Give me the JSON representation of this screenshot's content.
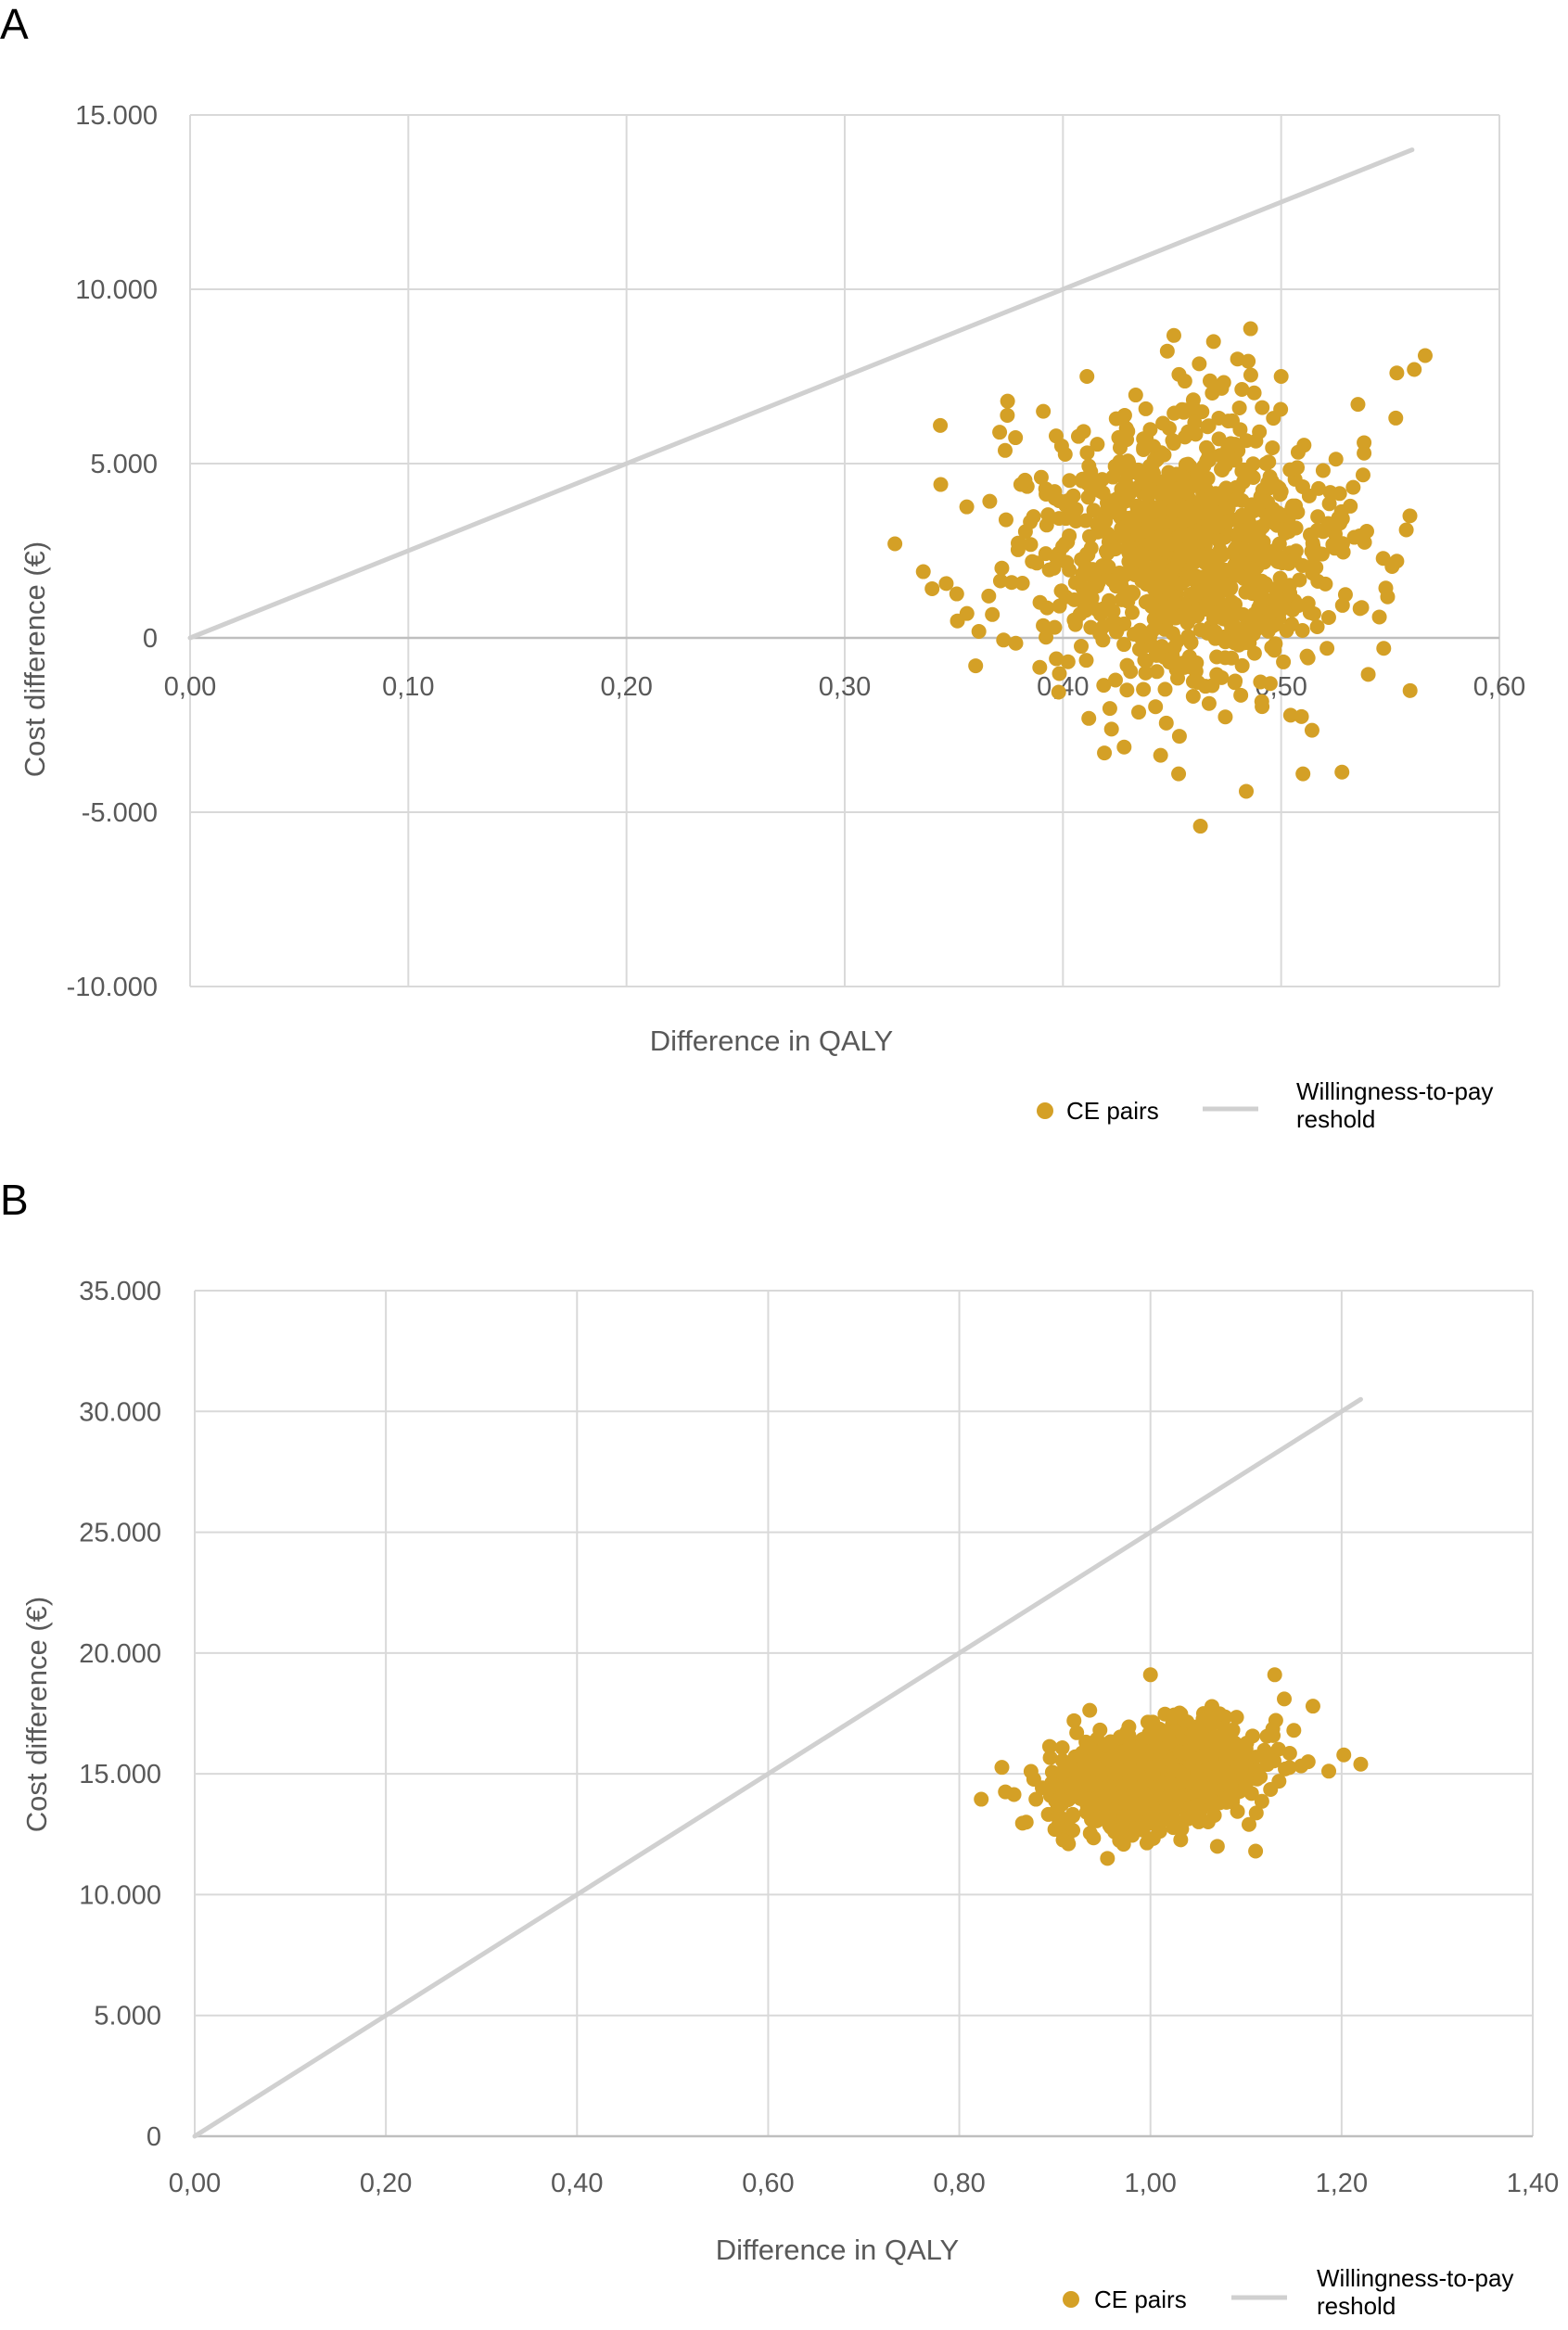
{
  "chart_data": [
    {
      "panel": "A",
      "type": "scatter",
      "xlabel": "Difference in QALY",
      "ylabel": "Cost difference (€)",
      "xlim": [
        0,
        0.6
      ],
      "ylim": [
        -10000,
        15000
      ],
      "x_ticks": [
        "0,00",
        "0,10",
        "0,20",
        "0,30",
        "0,40",
        "0,50",
        "0,60"
      ],
      "y_ticks": [
        "-10.000",
        "-5.000",
        "0",
        "5.000",
        "10.000",
        "15.000"
      ],
      "grid": true,
      "legend_position": "bottom-right",
      "colors": {
        "points": "#D4A026",
        "threshold": "#D0D0D0",
        "grid": "#D9D9D9"
      },
      "series": [
        {
          "name": "CE pairs",
          "kind": "scatter",
          "cloud": {
            "n": 1000,
            "x_mean": 0.455,
            "x_sd": 0.036,
            "y_mean": 2500,
            "y_sd": 2100
          },
          "points": [
            [
              0.323,
              2700
            ],
            [
              0.336,
              1900
            ],
            [
              0.344,
              4400
            ],
            [
              0.36,
              -800
            ],
            [
              0.463,
              -5400
            ],
            [
              0.484,
              -4400
            ],
            [
              0.51,
              -3900
            ],
            [
              0.453,
              -3900
            ],
            [
              0.419,
              -3300
            ],
            [
              0.469,
              8500
            ],
            [
              0.566,
              8100
            ],
            [
              0.561,
              7700
            ],
            [
              0.553,
              7600
            ],
            [
              0.411,
              7500
            ],
            [
              0.5,
              7500
            ],
            [
              0.553,
              2200
            ],
            [
              0.547,
              -300
            ],
            [
              0.521,
              -300
            ],
            [
              0.545,
              600
            ],
            [
              0.559,
              3500
            ],
            [
              0.538,
              5300
            ],
            [
              0.538,
              5600
            ],
            [
              0.356,
              700
            ],
            [
              0.371,
              5900
            ],
            [
              0.391,
              6500
            ],
            [
              0.48,
              8000
            ],
            [
              0.366,
              1200
            ]
          ]
        },
        {
          "name": "Willingness-to-pay reshold",
          "kind": "line",
          "points": [
            [
              0,
              0
            ],
            [
              0.56,
              14000
            ]
          ]
        }
      ]
    },
    {
      "panel": "B",
      "type": "scatter",
      "xlabel": "Difference in QALY",
      "ylabel": "Cost difference (€)",
      "xlim": [
        0,
        1.4
      ],
      "ylim": [
        0,
        35000
      ],
      "x_ticks": [
        "0,00",
        "0,20",
        "0,40",
        "0,60",
        "0,80",
        "1,00",
        "1,20",
        "1,40"
      ],
      "y_ticks": [
        "0",
        "5.000",
        "10.000",
        "15.000",
        "20.000",
        "25.000",
        "30.000",
        "35.000"
      ],
      "grid": true,
      "legend_position": "bottom-right",
      "colors": {
        "points": "#D4A026",
        "threshold": "#D0D0D0",
        "grid": "#D9D9D9"
      },
      "series": [
        {
          "name": "CE pairs",
          "kind": "scatter",
          "cloud": {
            "n": 1000,
            "x_mean": 1.005,
            "x_sd": 0.052,
            "y_mean": 14900,
            "y_sd": 1050
          },
          "points": [
            [
              0.87,
              13000
            ],
            [
              0.875,
              15100
            ],
            [
              0.955,
              11500
            ],
            [
              1.0,
              19100
            ],
            [
              1.13,
              19100
            ],
            [
              1.22,
              15400
            ],
            [
              1.11,
              11800
            ],
            [
              1.17,
              17800
            ],
            [
              1.14,
              18100
            ],
            [
              1.07,
              12000
            ],
            [
              1.165,
              15500
            ],
            [
              1.15,
              16800
            ],
            [
              0.9,
              12700
            ],
            [
              0.92,
              17200
            ]
          ]
        },
        {
          "name": "Willingness-to-pay reshold",
          "kind": "line",
          "points": [
            [
              0,
              0
            ],
            [
              1.22,
              30500
            ]
          ]
        }
      ]
    }
  ]
}
